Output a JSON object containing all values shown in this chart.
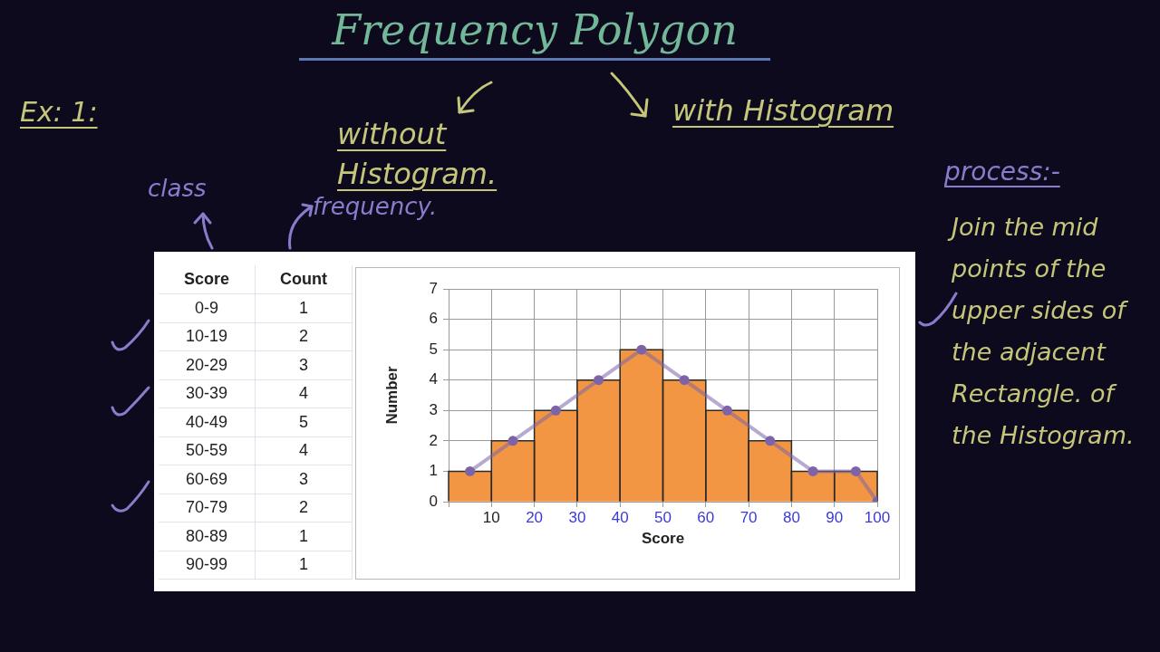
{
  "chart_data": {
    "type": "histogram",
    "title": "Frequency Polygon",
    "xlabel": "Score",
    "ylabel": "Number",
    "series": [
      {
        "color": "#f39644",
        "bins": [
          0,
          10,
          20,
          30,
          40,
          50,
          60,
          70,
          80,
          90,
          100
        ],
        "values": [
          1,
          2,
          3,
          4,
          5,
          4,
          3,
          2,
          1,
          1
        ]
      },
      {
        "type": "line",
        "color": "#7d64a8",
        "x": [
          5,
          15,
          25,
          35,
          45,
          55,
          65,
          75,
          85,
          95,
          100
        ],
        "values": [
          1,
          2,
          3,
          4,
          5,
          4,
          3,
          2,
          1,
          1,
          0
        ],
        "marker": "circle"
      }
    ],
    "xlim": [
      0,
      100
    ],
    "xticks": [
      {
        "value": 0,
        "label": null
      },
      10,
      20,
      30,
      40,
      50,
      60,
      70,
      80,
      90,
      100
    ],
    "ylim": [
      0,
      7
    ],
    "yticks": [
      0,
      1,
      2,
      3,
      4,
      5,
      6,
      7
    ],
    "grid": true,
    "annotations": [
      "Count",
      "0-9",
      "1",
      "10-19",
      "2",
      "20-29",
      "3",
      "30-39",
      "4",
      "40-49",
      "5",
      "50-59",
      "4",
      "60-69",
      "3",
      "70-79",
      "2",
      "80-89",
      "1",
      "90-99",
      "1",
      "Ex: 1:",
      "without Histogram.",
      "with Histogram",
      "class",
      "frequency.",
      "process:-",
      "Join the mid points of the upper sides of the adjacent Rectangle. of the Histogram."
    ]
  }
}
